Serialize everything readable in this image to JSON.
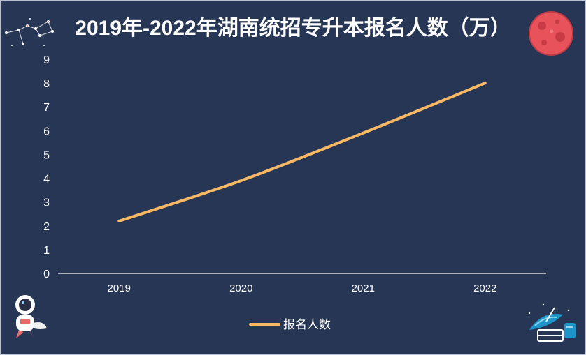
{
  "chart_data": {
    "type": "line",
    "title": "2019年-2022年湖南统招专升本报名人数（万）",
    "categories": [
      "2019",
      "2020",
      "2021",
      "2022"
    ],
    "series": [
      {
        "name": "报名人数",
        "values": [
          2.2,
          3.9,
          5.9,
          8.0
        ]
      }
    ],
    "yticks": [
      "0",
      "1",
      "2",
      "3",
      "4",
      "5",
      "6",
      "7",
      "8",
      "9"
    ],
    "ylim": [
      0,
      9
    ],
    "grid": false,
    "legend": "bottom-center",
    "colors": {
      "background": "#273654",
      "series": "#f9b864",
      "text": "#ffffff"
    }
  },
  "decorations": {
    "top_left": "constellation-icon",
    "top_right": "planet-icon",
    "bottom_left": "astronaut-rocket-icon",
    "bottom_right": "satellite-dish-icon"
  }
}
